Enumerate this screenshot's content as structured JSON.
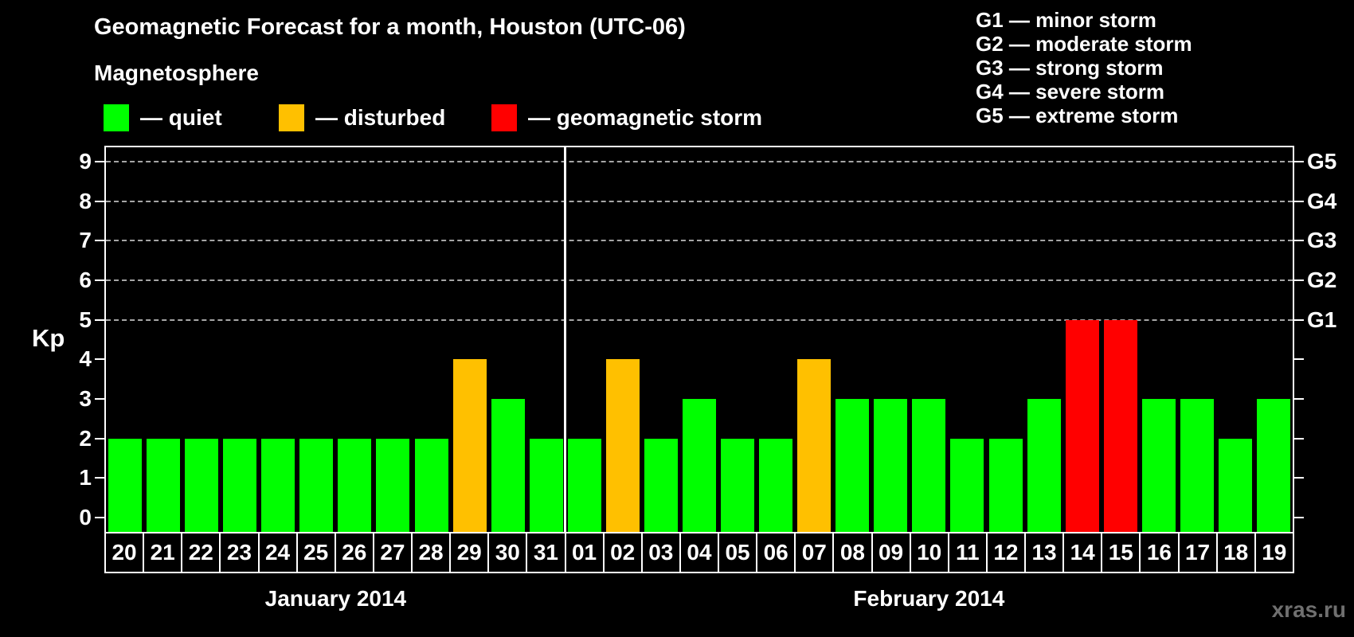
{
  "header": {
    "title": "Geomagnetic Forecast for a month, Houston (UTC-06)",
    "subtitle": "Magnetosphere"
  },
  "legend": {
    "items": [
      {
        "key": "quiet",
        "label": "— quiet",
        "color": "#00ff00"
      },
      {
        "key": "disturbed",
        "label": "— disturbed",
        "color": "#ffc000"
      },
      {
        "key": "storm",
        "label": "— geomagnetic storm",
        "color": "#ff0000"
      }
    ]
  },
  "g_scale_legend": [
    "G1 — minor storm",
    "G2 — moderate storm",
    "G3 — strong storm",
    "G4 — severe storm",
    "G5 — extreme storm"
  ],
  "watermark": "xras.ru",
  "chart_data": {
    "type": "bar",
    "title": "Geomagnetic Forecast for a month, Houston (UTC-06)",
    "ylabel": "Kp",
    "ylim": [
      -0.36,
      9.36
    ],
    "yticks": [
      0,
      1,
      2,
      3,
      4,
      5,
      6,
      7,
      8,
      9
    ],
    "gridline_levels": [
      5,
      6,
      7,
      8,
      9
    ],
    "grid": "dashed horizontal lines at G-storm levels only",
    "right_axis_ticks": [
      {
        "kp": 5,
        "label": "G1"
      },
      {
        "kp": 6,
        "label": "G2"
      },
      {
        "kp": 7,
        "label": "G3"
      },
      {
        "kp": 8,
        "label": "G4"
      },
      {
        "kp": 9,
        "label": "G5"
      }
    ],
    "colors": {
      "quiet": "#00ff00",
      "disturbed": "#ffc000",
      "storm": "#ff0000"
    },
    "color_rule": "Kp<=3 quiet (green), Kp=4 disturbed (orange), Kp>=5 geomagnetic storm (red)",
    "categories": [
      "20",
      "21",
      "22",
      "23",
      "24",
      "25",
      "26",
      "27",
      "28",
      "29",
      "30",
      "31",
      "01",
      "02",
      "03",
      "04",
      "05",
      "06",
      "07",
      "08",
      "09",
      "10",
      "11",
      "12",
      "13",
      "14",
      "15",
      "16",
      "17",
      "18",
      "19"
    ],
    "values": [
      2,
      2,
      2,
      2,
      2,
      2,
      2,
      2,
      2,
      4,
      3,
      2,
      2,
      4,
      2,
      3,
      2,
      2,
      4,
      3,
      3,
      3,
      2,
      2,
      3,
      5,
      5,
      3,
      3,
      2,
      3
    ],
    "series": [
      {
        "name": "Kp",
        "values": [
          2,
          2,
          2,
          2,
          2,
          2,
          2,
          2,
          2,
          4,
          3,
          2,
          2,
          4,
          2,
          3,
          2,
          2,
          4,
          3,
          3,
          3,
          2,
          2,
          3,
          5,
          5,
          3,
          3,
          2,
          3
        ]
      }
    ],
    "months": [
      {
        "label": "January 2014",
        "days": [
          {
            "day": "20",
            "kp": 2,
            "status": "quiet"
          },
          {
            "day": "21",
            "kp": 2,
            "status": "quiet"
          },
          {
            "day": "22",
            "kp": 2,
            "status": "quiet"
          },
          {
            "day": "23",
            "kp": 2,
            "status": "quiet"
          },
          {
            "day": "24",
            "kp": 2,
            "status": "quiet"
          },
          {
            "day": "25",
            "kp": 2,
            "status": "quiet"
          },
          {
            "day": "26",
            "kp": 2,
            "status": "quiet"
          },
          {
            "day": "27",
            "kp": 2,
            "status": "quiet"
          },
          {
            "day": "28",
            "kp": 2,
            "status": "quiet"
          },
          {
            "day": "29",
            "kp": 4,
            "status": "disturbed"
          },
          {
            "day": "30",
            "kp": 3,
            "status": "quiet"
          },
          {
            "day": "31",
            "kp": 2,
            "status": "quiet"
          }
        ]
      },
      {
        "label": "February 2014",
        "days": [
          {
            "day": "01",
            "kp": 2,
            "status": "quiet"
          },
          {
            "day": "02",
            "kp": 4,
            "status": "disturbed"
          },
          {
            "day": "03",
            "kp": 2,
            "status": "quiet"
          },
          {
            "day": "04",
            "kp": 3,
            "status": "quiet"
          },
          {
            "day": "05",
            "kp": 2,
            "status": "quiet"
          },
          {
            "day": "06",
            "kp": 2,
            "status": "quiet"
          },
          {
            "day": "07",
            "kp": 4,
            "status": "disturbed"
          },
          {
            "day": "08",
            "kp": 3,
            "status": "quiet"
          },
          {
            "day": "09",
            "kp": 3,
            "status": "quiet"
          },
          {
            "day": "10",
            "kp": 3,
            "status": "quiet"
          },
          {
            "day": "11",
            "kp": 2,
            "status": "quiet"
          },
          {
            "day": "12",
            "kp": 2,
            "status": "quiet"
          },
          {
            "day": "13",
            "kp": 3,
            "status": "quiet"
          },
          {
            "day": "14",
            "kp": 5,
            "status": "storm"
          },
          {
            "day": "15",
            "kp": 5,
            "status": "storm"
          },
          {
            "day": "16",
            "kp": 3,
            "status": "quiet"
          },
          {
            "day": "17",
            "kp": 3,
            "status": "quiet"
          },
          {
            "day": "18",
            "kp": 2,
            "status": "quiet"
          },
          {
            "day": "19",
            "kp": 3,
            "status": "quiet"
          }
        ]
      }
    ]
  }
}
